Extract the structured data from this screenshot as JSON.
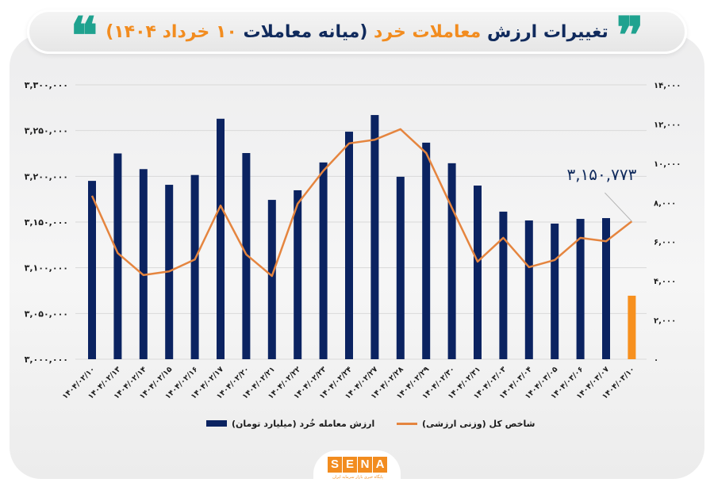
{
  "header": {
    "title_parts": [
      {
        "text": "تغییرات ارزش ",
        "color": "navy"
      },
      {
        "text": "معاملات خرد ",
        "color": "orange"
      },
      {
        "text": "(میانه معاملات ",
        "color": "navy"
      },
      {
        "text": "۱۰ خرداد ۱۴۰۴)",
        "color": "orange"
      }
    ],
    "quote_open": "❞",
    "quote_close": "❝"
  },
  "colors": {
    "bar": "#0b2361",
    "bar_highlight": "#f7901e",
    "line": "#e5853f",
    "title_navy": "#102a5c",
    "title_orange": "#f28c1f",
    "quote": "#1fa28f"
  },
  "legend": {
    "bars_label": "ارزش معامله خُرد (میلیارد تومان)",
    "line_label": "شاخص کل (وزنی ارزشی)"
  },
  "annotation": {
    "text": "۳,۱۵۰,۷۷۳"
  },
  "footer": {
    "logo_letters": [
      "S",
      "E",
      "N",
      "A"
    ],
    "logo_subtitle": "پایگاه خبری بازار سرمایه ایران"
  },
  "chart_data": {
    "type": "bar",
    "title": "تغییرات ارزش معاملات خرد (میانه معاملات ۱۰ خرداد ۱۴۰۴)",
    "xlabel": "",
    "categories": [
      "۱۴۰۴/۰۲/۱۰",
      "۱۴۰۴/۰۲/۱۳",
      "۱۴۰۴/۰۲/۱۴",
      "۱۴۰۴/۰۲/۱۵",
      "۱۴۰۴/۰۲/۱۶",
      "۱۴۰۴/۰۲/۱۷",
      "۱۴۰۴/۰۲/۲۰",
      "۱۴۰۴/۰۲/۲۱",
      "۱۴۰۴/۰۲/۲۲",
      "۱۴۰۴/۰۲/۲۳",
      "۱۴۰۴/۰۲/۲۴",
      "۱۴۰۴/۰۲/۲۷",
      "۱۴۰۴/۰۲/۲۸",
      "۱۴۰۴/۰۲/۲۹",
      "۱۴۰۴/۰۲/۳۰",
      "۱۴۰۴/۰۲/۳۱",
      "۱۴۰۴/۰۳/۰۳",
      "۱۴۰۴/۰۳/۰۴",
      "۱۴۰۴/۰۳/۰۵",
      "۱۴۰۴/۰۳/۰۶",
      "۱۴۰۴/۰۳/۰۷",
      "۱۴۰۴/۰۳/۱۰"
    ],
    "series": [
      {
        "name": "ارزش معامله خُرد (میلیارد تومان)",
        "kind": "bar",
        "axis": "right",
        "values": [
          9100,
          10500,
          9700,
          8900,
          9400,
          12270,
          10520,
          8130,
          8620,
          10040,
          11610,
          12460,
          9310,
          11050,
          10000,
          8860,
          7530,
          7080,
          6920,
          7160,
          7200,
          3240
        ],
        "highlight_last": true
      },
      {
        "name": "شاخص کل (وزنی ارزشی)",
        "kind": "line",
        "axis": "left",
        "values": [
          3178700,
          3116000,
          3092000,
          3096000,
          3109000,
          3168000,
          3114500,
          3091000,
          3170000,
          3206000,
          3236000,
          3240000,
          3251500,
          3225500,
          3165600,
          3106700,
          3132700,
          3100600,
          3108400,
          3132700,
          3129000,
          3150773
        ]
      }
    ],
    "left_axis": {
      "ylim": [
        3000000,
        3300000
      ],
      "ticks": [
        3000000,
        3050000,
        3100000,
        3150000,
        3200000,
        3250000,
        3300000
      ],
      "tick_labels": [
        "۳,۰۰۰,۰۰۰",
        "۳,۰۵۰,۰۰۰",
        "۳,۱۰۰,۰۰۰",
        "۳,۱۵۰,۰۰۰",
        "۳,۲۰۰,۰۰۰",
        "۳,۲۵۰,۰۰۰",
        "۳,۳۰۰,۰۰۰"
      ]
    },
    "right_axis": {
      "ylim": [
        0,
        14000
      ],
      "ticks": [
        0,
        2000,
        4000,
        6000,
        8000,
        10000,
        12000,
        14000
      ],
      "tick_labels": [
        "۰",
        "۲,۰۰۰",
        "۴,۰۰۰",
        "۶,۰۰۰",
        "۸,۰۰۰",
        "۱۰,۰۰۰",
        "۱۲,۰۰۰",
        "۱۴,۰۰۰"
      ]
    },
    "annotation": {
      "index": 21,
      "series": 1,
      "label": "۳,۱۵۰,۷۷۳"
    },
    "grid": true,
    "legend_position": "bottom"
  }
}
